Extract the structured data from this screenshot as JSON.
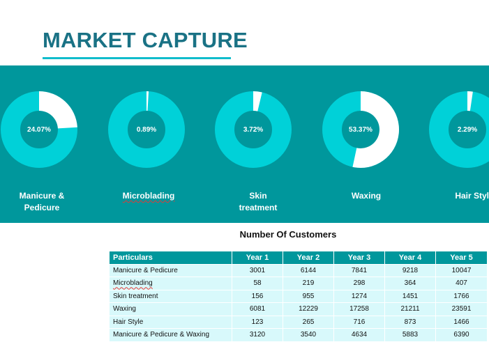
{
  "title": "MARKET CAPTURE",
  "colors": {
    "band": "#00979c",
    "ring": "#00d1d8",
    "highlight": "#ffffff",
    "title": "#1a7285"
  },
  "services": [
    {
      "name": "Manicure & Pedicure",
      "label_line1": "Manicure &",
      "label_line2": "Pedicure",
      "share": 24.07,
      "share_label": "24.07%"
    },
    {
      "name": "Microblading",
      "label_line1": "Microblading",
      "label_line2": "",
      "share": 0.89,
      "share_label": "0.89%"
    },
    {
      "name": "Skin treatment",
      "label_line1": "Skin",
      "label_line2": "treatment",
      "share": 3.72,
      "share_label": "3.72%"
    },
    {
      "name": "Waxing",
      "label_line1": "Waxing",
      "label_line2": "",
      "share": 53.37,
      "share_label": "53.37%"
    },
    {
      "name": "Hair Style",
      "label_line1": "Hair Style",
      "label_line2": "",
      "share": 2.29,
      "share_label": "2.29%"
    }
  ],
  "table": {
    "title": "Number Of Customers",
    "headers": [
      "Particulars",
      "Year 1",
      "Year 2",
      "Year 3",
      "Year 4",
      "Year 5"
    ],
    "rows": [
      [
        "Manicure & Pedicure",
        "3001",
        "6144",
        "7841",
        "9218",
        "10047"
      ],
      [
        "Microblading",
        "58",
        "219",
        "298",
        "364",
        "407"
      ],
      [
        "Skin treatment",
        "156",
        "955",
        "1274",
        "1451",
        "1766"
      ],
      [
        "Waxing",
        "6081",
        "12229",
        "17258",
        "21211",
        "23591"
      ],
      [
        "Hair Style",
        "123",
        "265",
        "716",
        "873",
        "1466"
      ],
      [
        "Manicure & Pedicure & Waxing",
        "3120",
        "3540",
        "4634",
        "5883",
        "6390"
      ]
    ]
  }
}
